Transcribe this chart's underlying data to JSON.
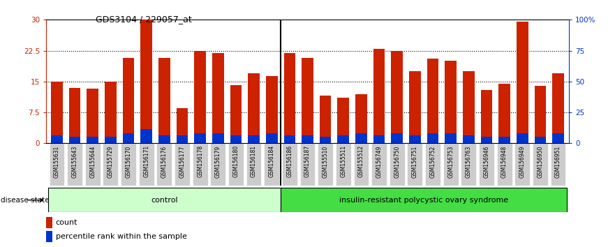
{
  "title": "GDS3104 / 229057_at",
  "samples": [
    "GSM155631",
    "GSM155643",
    "GSM155644",
    "GSM155729",
    "GSM156170",
    "GSM156171",
    "GSM156176",
    "GSM156177",
    "GSM156178",
    "GSM156179",
    "GSM156180",
    "GSM156181",
    "GSM156184",
    "GSM156186",
    "GSM156187",
    "GSM155510",
    "GSM155511",
    "GSM155512",
    "GSM156749",
    "GSM156750",
    "GSM156751",
    "GSM156752",
    "GSM156753",
    "GSM156763",
    "GSM156946",
    "GSM156948",
    "GSM156949",
    "GSM156950",
    "GSM156951"
  ],
  "count_values": [
    15.0,
    13.5,
    13.2,
    15.0,
    20.8,
    30.0,
    20.8,
    8.5,
    22.5,
    22.0,
    14.2,
    17.0,
    16.3,
    22.0,
    20.8,
    11.5,
    11.0,
    12.0,
    23.0,
    22.5,
    17.5,
    20.5,
    20.0,
    17.5,
    13.0,
    14.5,
    29.5,
    14.0,
    17.0
  ],
  "percentile_values": [
    2.0,
    1.5,
    1.5,
    1.5,
    2.5,
    3.5,
    2.0,
    2.0,
    2.5,
    2.5,
    2.0,
    2.0,
    2.5,
    2.0,
    2.0,
    1.5,
    2.0,
    2.5,
    2.0,
    2.5,
    2.0,
    2.5,
    2.5,
    2.0,
    1.5,
    1.5,
    2.5,
    1.5,
    2.5
  ],
  "control_count": 13,
  "disease_count": 16,
  "group_labels": [
    "control",
    "insulin-resistant polycystic ovary syndrome"
  ],
  "bar_color_red": "#CC2200",
  "bar_color_blue": "#0033CC",
  "ylim_left": [
    0,
    30
  ],
  "ylim_right": [
    0,
    100
  ],
  "yticks_left": [
    0,
    7.5,
    15,
    22.5,
    30
  ],
  "yticks_right": [
    0,
    25,
    50,
    75,
    100
  ],
  "ytick_labels_left": [
    "0",
    "7.5",
    "15",
    "22.5",
    "30"
  ],
  "ytick_labels_right": [
    "0",
    "25",
    "50",
    "75",
    "100%"
  ],
  "grid_values": [
    7.5,
    15,
    22.5
  ],
  "disease_state_label": "disease state",
  "legend_count_label": "count",
  "legend_percentile_label": "percentile rank within the sample",
  "ctrl_color": "#ccffcc",
  "disease_color": "#44dd44",
  "label_box_color": "#cccccc"
}
